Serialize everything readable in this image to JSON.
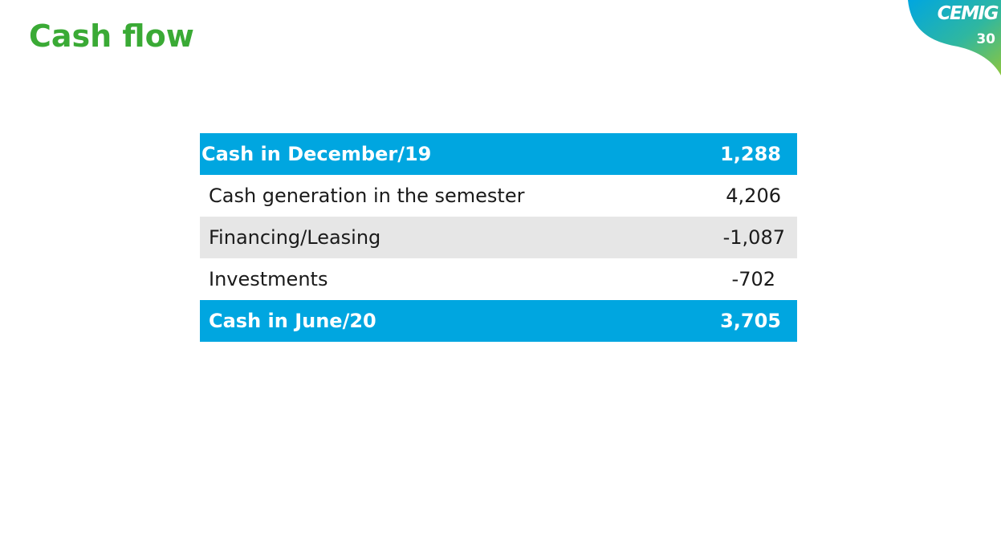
{
  "slide": {
    "title": "Cash flow",
    "page_number": "30"
  },
  "logo": {
    "text": "CEMIG"
  },
  "colors": {
    "title_green": "#3aaa35",
    "table_header_blue": "#00a6e0",
    "row_shade_gray": "#e6e6e6"
  },
  "table": {
    "rows": [
      {
        "label": "Cash in December/19",
        "value": "1,288"
      },
      {
        "label": "Cash generation in the semester",
        "value": "4,206"
      },
      {
        "label": "Financing/Leasing",
        "value": "-1,087"
      },
      {
        "label": "Investments",
        "value": "-702"
      },
      {
        "label": "Cash in June/20",
        "value": "3,705"
      }
    ]
  }
}
